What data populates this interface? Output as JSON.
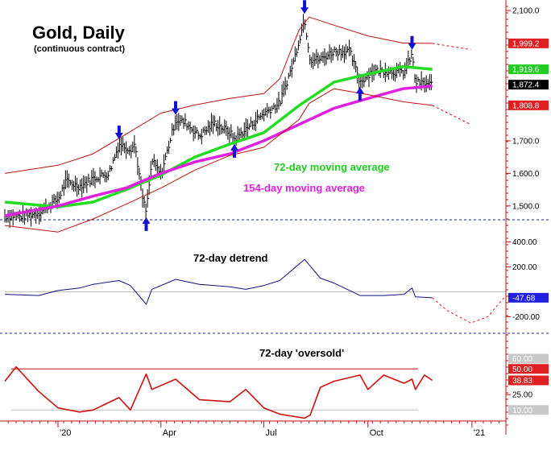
{
  "chart_data": [
    {
      "type": "line",
      "title": "Gold, Daily",
      "subtitle": "(continuous contract)",
      "y_ticks": [
        "2,100.0",
        "1,700.0",
        "1,600.0",
        "1,500.0"
      ],
      "ylim": [
        1460,
        2120
      ],
      "x_ticks": [
        "'20",
        "Apr",
        "Jul",
        "Oct",
        "'21"
      ],
      "x_tick_dates": [
        "2020-01-01",
        "2020-04-01",
        "2020-07-01",
        "2020-10-01",
        "2021-01-01"
      ],
      "xlim": [
        "2019-11-15",
        "2021-01-31"
      ],
      "annotations": [
        "72-day moving average",
        "154-day moving average"
      ],
      "value_badges": [
        {
          "label": "1,999.2",
          "value": 1999.2,
          "color": "#e02020"
        },
        {
          "label": "1,919.6",
          "value": 1919.6,
          "color": "#22cc22"
        },
        {
          "label": "1,872.4",
          "value": 1872.4,
          "color": "#000000"
        },
        {
          "label": "1,808.8",
          "value": 1808.8,
          "color": "#e02020"
        }
      ],
      "series": [
        {
          "name": "Gold",
          "style": "bars",
          "color": "#000000",
          "x": [
            "2019-11-15",
            "2019-12-01",
            "2019-12-15",
            "2020-01-01",
            "2020-01-08",
            "2020-01-20",
            "2020-02-01",
            "2020-02-15",
            "2020-02-24",
            "2020-03-05",
            "2020-03-09",
            "2020-03-16",
            "2020-03-19",
            "2020-03-24",
            "2020-04-01",
            "2020-04-14",
            "2020-04-23",
            "2020-05-05",
            "2020-05-18",
            "2020-06-01",
            "2020-06-05",
            "2020-06-15",
            "2020-07-01",
            "2020-07-15",
            "2020-07-27",
            "2020-08-06",
            "2020-08-11",
            "2020-08-20",
            "2020-09-01",
            "2020-09-15",
            "2020-09-24",
            "2020-10-05",
            "2020-10-15",
            "2020-11-02",
            "2020-11-09",
            "2020-11-12",
            "2020-11-20",
            "2020-11-27"
          ],
          "values": [
            1470,
            1468,
            1480,
            1520,
            1575,
            1560,
            1585,
            1600,
            1690,
            1675,
            1690,
            1520,
            1480,
            1640,
            1595,
            1765,
            1755,
            1715,
            1755,
            1725,
            1705,
            1735,
            1785,
            1815,
            1940,
            2075,
            1950,
            1950,
            1975,
            1975,
            1880,
            1915,
            1915,
            1910,
            1965,
            1880,
            1875,
            1872
          ]
        },
        {
          "name": "72-day moving average",
          "color": "#22dd22",
          "x": [
            "2019-11-15",
            "2020-01-01",
            "2020-02-01",
            "2020-03-01",
            "2020-04-01",
            "2020-05-01",
            "2020-06-01",
            "2020-07-01",
            "2020-08-01",
            "2020-09-01",
            "2020-10-01",
            "2020-11-01",
            "2020-11-27"
          ],
          "values": [
            1512,
            1497,
            1512,
            1550,
            1595,
            1650,
            1690,
            1725,
            1808,
            1880,
            1905,
            1928,
            1919.6
          ]
        },
        {
          "name": "154-day moving average",
          "color": "#e020e0",
          "x": [
            "2019-11-15",
            "2020-01-01",
            "2020-02-01",
            "2020-03-01",
            "2020-04-01",
            "2020-05-01",
            "2020-06-01",
            "2020-07-01",
            "2020-08-01",
            "2020-09-01",
            "2020-10-01",
            "2020-11-01",
            "2020-11-27"
          ],
          "values": [
            1470,
            1500,
            1530,
            1555,
            1600,
            1635,
            1660,
            1700,
            1750,
            1800,
            1830,
            1860,
            1868
          ]
        },
        {
          "name": "Upper band",
          "color": "#c01010",
          "x": [
            "2019-11-15",
            "2020-01-01",
            "2020-02-01",
            "2020-03-01",
            "2020-04-01",
            "2020-05-01",
            "2020-06-01",
            "2020-07-01",
            "2020-07-15",
            "2020-08-01",
            "2020-08-10",
            "2020-09-01",
            "2020-10-01",
            "2020-11-01",
            "2020-11-27"
          ],
          "values": [
            1600,
            1625,
            1660,
            1720,
            1785,
            1810,
            1830,
            1845,
            1890,
            2040,
            2080,
            2055,
            2022,
            2000,
            1999.2
          ]
        },
        {
          "name": "Upper band projection",
          "color": "#c01010",
          "dashed": true,
          "x": [
            "2020-11-27",
            "2020-12-31"
          ],
          "values": [
            1999.2,
            1980
          ]
        },
        {
          "name": "Lower band",
          "color": "#c01010",
          "x": [
            "2019-11-15",
            "2020-01-01",
            "2020-02-01",
            "2020-03-01",
            "2020-04-01",
            "2020-05-01",
            "2020-06-01",
            "2020-07-01",
            "2020-08-01",
            "2020-08-10",
            "2020-09-01",
            "2020-10-01",
            "2020-11-01",
            "2020-11-27"
          ],
          "values": [
            1440,
            1420,
            1460,
            1505,
            1555,
            1610,
            1655,
            1680,
            1765,
            1815,
            1860,
            1842,
            1820,
            1808.8
          ]
        },
        {
          "name": "Lower band projection",
          "color": "#c01010",
          "dashed": true,
          "x": [
            "2020-11-27",
            "2020-12-31"
          ],
          "values": [
            1808.8,
            1750
          ]
        }
      ],
      "markers": [
        {
          "x": "2020-02-24",
          "value": 1690,
          "direction": "down"
        },
        {
          "x": "2020-03-19",
          "value": 1480,
          "direction": "up"
        },
        {
          "x": "2020-04-14",
          "value": 1765,
          "direction": "down"
        },
        {
          "x": "2020-06-05",
          "value": 1705,
          "direction": "up"
        },
        {
          "x": "2020-08-06",
          "value": 2075,
          "direction": "down"
        },
        {
          "x": "2020-09-24",
          "value": 1880,
          "direction": "up"
        },
        {
          "x": "2020-11-09",
          "value": 1965,
          "direction": "down"
        }
      ]
    },
    {
      "type": "line",
      "title": "72-day detrend",
      "y_ticks": [
        "400.00",
        "200.00",
        "-200.00"
      ],
      "ylim": [
        -320,
        520
      ],
      "value_badges": [
        {
          "label": "-47.68",
          "value": -47.68,
          "color": "#2020e0"
        }
      ],
      "series": [
        {
          "name": "72-day detrend",
          "color": "#101080",
          "x": [
            "2019-11-15",
            "2019-12-15",
            "2020-01-01",
            "2020-01-20",
            "2020-02-01",
            "2020-02-24",
            "2020-03-05",
            "2020-03-19",
            "2020-03-24",
            "2020-04-14",
            "2020-05-05",
            "2020-06-01",
            "2020-06-15",
            "2020-07-01",
            "2020-07-15",
            "2020-08-06",
            "2020-08-20",
            "2020-09-01",
            "2020-09-24",
            "2020-10-15",
            "2020-11-02",
            "2020-11-09",
            "2020-11-12",
            "2020-11-27"
          ],
          "values": [
            -20,
            -30,
            10,
            30,
            60,
            90,
            50,
            -100,
            20,
            100,
            60,
            40,
            20,
            50,
            90,
            260,
            110,
            70,
            -30,
            -30,
            -20,
            30,
            -40,
            -47.68
          ]
        },
        {
          "name": "projection",
          "color": "#e02020",
          "dashed": true,
          "x": [
            "2020-11-27",
            "2020-12-10",
            "2020-12-31",
            "2021-01-15",
            "2021-01-31"
          ],
          "values": [
            -47.68,
            -150,
            -250,
            -200,
            -30
          ]
        }
      ]
    },
    {
      "type": "line",
      "title": "72-day 'oversold'",
      "y_ticks": [
        "25.00"
      ],
      "ylim": [
        0,
        80
      ],
      "value_badges": [
        {
          "label": "60.00",
          "value": 60,
          "color": "#c8c8c8"
        },
        {
          "label": "50.00",
          "value": 50,
          "color": "#e02020"
        },
        {
          "label": "38.83",
          "value": 38.83,
          "color": "#e02020"
        },
        {
          "label": "10.00",
          "value": 10,
          "color": "#c8c8c8"
        }
      ],
      "series": [
        {
          "name": "72-day 'oversold'",
          "color": "#d01010",
          "x": [
            "2019-11-15",
            "2019-11-25",
            "2019-12-15",
            "2020-01-01",
            "2020-01-20",
            "2020-02-01",
            "2020-02-24",
            "2020-03-05",
            "2020-03-19",
            "2020-03-24",
            "2020-04-14",
            "2020-05-05",
            "2020-06-01",
            "2020-06-15",
            "2020-07-01",
            "2020-07-15",
            "2020-08-06",
            "2020-08-11",
            "2020-08-20",
            "2020-09-01",
            "2020-09-24",
            "2020-10-01",
            "2020-10-15",
            "2020-11-02",
            "2020-11-09",
            "2020-11-12",
            "2020-11-20",
            "2020-11-27"
          ],
          "values": [
            38,
            52,
            28,
            12,
            8,
            10,
            22,
            10,
            45,
            30,
            40,
            20,
            18,
            30,
            12,
            6,
            2,
            5,
            32,
            38,
            44,
            30,
            44,
            36,
            40,
            30,
            44,
            38.83
          ]
        }
      ]
    }
  ]
}
